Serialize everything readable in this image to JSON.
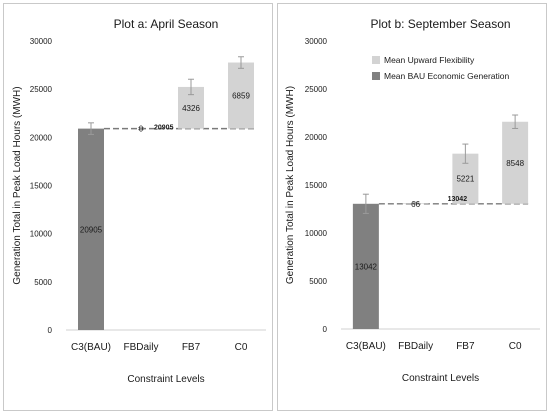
{
  "colors": {
    "bau": "#808080",
    "flex": "#d3d3d3",
    "dashed": "#7a7a7a",
    "error_bar": "#9a9a9a",
    "border": "#c9c9c9"
  },
  "chart_data": [
    {
      "type": "bar",
      "subtype": "stacked-waterfall",
      "title": "Plot a: April Season",
      "xlabel": "Constraint Levels",
      "ylabel": "Generation Total in Peak Load Hours (MWH)",
      "ylim": [
        0,
        30000
      ],
      "yticks": [
        0,
        5000,
        10000,
        15000,
        20000,
        25000,
        30000
      ],
      "categories": [
        "C3(BAU)",
        "FBDaily",
        "FB7",
        "C0"
      ],
      "series": [
        {
          "name": "",
          "role": "base",
          "values": [
            null,
            20905,
            20905,
            20905
          ]
        },
        {
          "name": "Mean Upward Flexibility",
          "role": "flexibility",
          "values": [
            null,
            0,
            4326,
            6859
          ],
          "error": [
            null,
            100,
            800,
            600
          ]
        },
        {
          "name": "Mean BAU Economic Generation",
          "role": "bau",
          "values": [
            20905,
            null,
            null,
            null
          ],
          "error": [
            600,
            null,
            null,
            null
          ]
        }
      ],
      "data_labels": [
        "20905",
        "0",
        "4326",
        "6859"
      ],
      "baseline_label": "20905",
      "legend": "none",
      "grid": false
    },
    {
      "type": "bar",
      "subtype": "stacked-waterfall",
      "title": "Plot b: September Season",
      "xlabel": "Constraint Levels",
      "ylabel": "Generation Total in Peak Load Hours (MWH)",
      "ylim": [
        0,
        30000
      ],
      "yticks": [
        0,
        5000,
        10000,
        15000,
        20000,
        25000,
        30000
      ],
      "categories": [
        "C3(BAU)",
        "FBDaily",
        "FB7",
        "C0"
      ],
      "series": [
        {
          "name": "",
          "role": "base",
          "values": [
            null,
            13042,
            13042,
            13042
          ]
        },
        {
          "name": "Mean Upward Flexibility",
          "role": "flexibility",
          "values": [
            null,
            66,
            5221,
            8548
          ],
          "error": [
            null,
            100,
            1000,
            700
          ]
        },
        {
          "name": "Mean BAU Economic Generation",
          "role": "bau",
          "values": [
            13042,
            null,
            null,
            null
          ],
          "error": [
            1000,
            null,
            null,
            null
          ]
        }
      ],
      "data_labels": [
        "13042",
        "66",
        "5221",
        "8548"
      ],
      "baseline_label": "13042",
      "legend": "top-right",
      "legend_entries": [
        "Mean Upward Flexibility",
        "Mean BAU Economic Generation"
      ],
      "grid": false
    }
  ]
}
